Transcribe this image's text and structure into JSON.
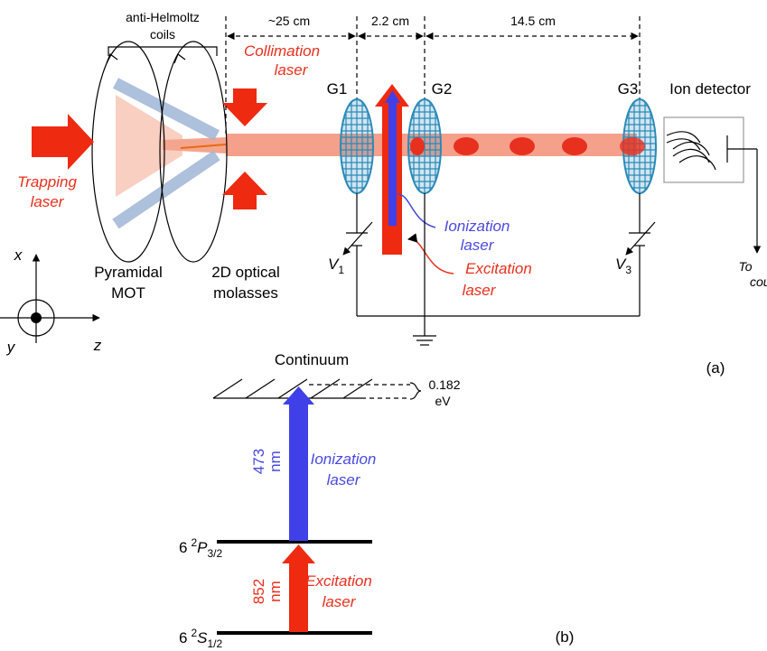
{
  "panel_a": {
    "coils_label": [
      "anti-Helmoltz",
      "coils"
    ],
    "distances": [
      "~25 cm",
      "2.2 cm",
      "14.5 cm"
    ],
    "collimation_laser": [
      "Collimation",
      "laser"
    ],
    "grids": [
      "G1",
      "G2",
      "G3"
    ],
    "ion_detector": "Ion detector",
    "trapping_laser": [
      "Trapping",
      "laser"
    ],
    "ionization_laser": [
      "Ionization",
      "laser"
    ],
    "excitation_laser": [
      "Excitation",
      "laser"
    ],
    "voltages": [
      {
        "symbol": "V",
        "sub": "1"
      },
      {
        "symbol": "V",
        "sub": "3"
      }
    ],
    "to_counter": [
      "To",
      "counter"
    ],
    "mot": [
      "Pyramidal",
      "MOT"
    ],
    "molasses": [
      "2D optical",
      "molasses"
    ],
    "axes": {
      "x": "x",
      "y": "y",
      "z": "z"
    },
    "panel_label": "(a)"
  },
  "panel_b": {
    "continuum": "Continuum",
    "gap": [
      "0.182",
      "eV"
    ],
    "ionization_wavelength": [
      "473",
      "nm"
    ],
    "ionization_laser": [
      "Ionization",
      "laser"
    ],
    "excitation_wavelength": [
      "852",
      "nm"
    ],
    "excitation_laser": [
      "Excitation",
      "laser"
    ],
    "upper_level": {
      "n": "6",
      "mult": "2",
      "L": "P",
      "j": "3/2"
    },
    "lower_level": {
      "n": "6",
      "mult": "2",
      "L": "S",
      "j": "1/2"
    },
    "panel_label": "(b)"
  }
}
